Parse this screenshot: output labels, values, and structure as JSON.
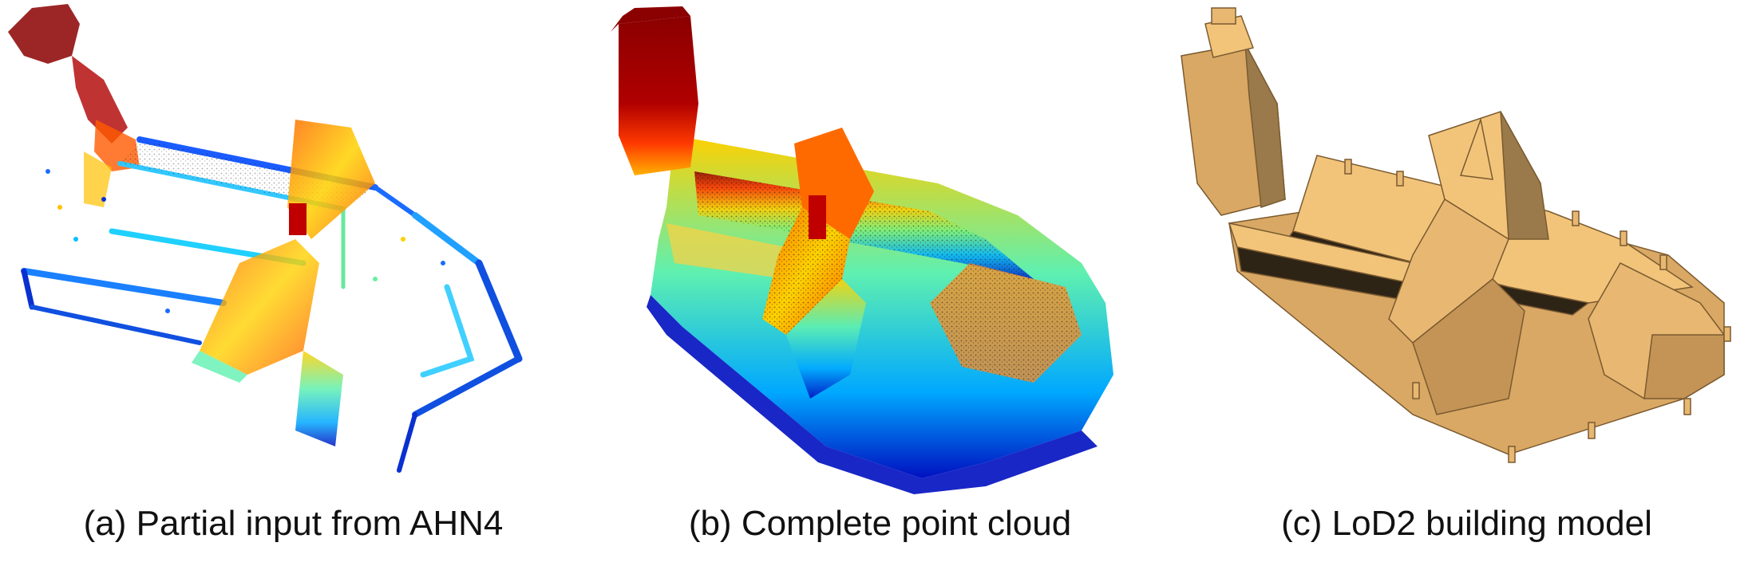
{
  "figure": {
    "panels": [
      {
        "id": "a",
        "caption": "(a) Partial input from AHN4",
        "kind": "partial-point-cloud"
      },
      {
        "id": "b",
        "caption": "(b) Complete point cloud",
        "kind": "complete-point-cloud"
      },
      {
        "id": "c",
        "caption": "(c) LoD2 building model",
        "kind": "lod2-mesh"
      }
    ],
    "colors": {
      "point_high": "#8b0000",
      "point_mid_high": "#ff3000",
      "point_mid": "#ffd000",
      "point_mid_low": "#5ff0a0",
      "point_low": "#00a0ff",
      "point_base": "#0010c0",
      "model_face_light": "#f2c47a",
      "model_face_mid": "#d9a864",
      "model_face_dark": "#9a7a4a",
      "model_roof_dark": "#2e2416"
    }
  }
}
